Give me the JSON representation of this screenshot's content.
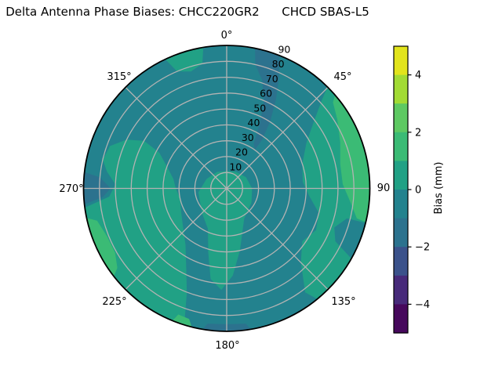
{
  "title": "Delta Antenna Phase Biases: CHCC220GR2      CHCD SBAS-L5",
  "chart_data": {
    "type": "heatmap",
    "projection": "polar",
    "title": "Delta Antenna Phase Biases: CHCC220GR2      CHCD SBAS-L5",
    "theta_tick_labels": [
      "0°",
      "45°",
      "90",
      "135°",
      "180°",
      "225°",
      "270°",
      "315°"
    ],
    "r_tick_labels": [
      "10",
      "20",
      "30",
      "40",
      "50",
      "60",
      "70",
      "80",
      "90"
    ],
    "r_range": [
      0,
      90
    ],
    "grid": true,
    "colorbar": {
      "label": "Bias (mm)",
      "range": [
        -5,
        5
      ],
      "tick_values": [
        4,
        2,
        0,
        -2,
        -4
      ],
      "tick_labels": [
        "4",
        "2",
        "0",
        "−2",
        "−4"
      ],
      "band_colors_top_to_bottom": [
        "#e2e41c",
        "#a2db34",
        "#5ec962",
        "#3bbb75",
        "#21a185",
        "#23828e",
        "#2c728e",
        "#3b528b",
        "#472a7a",
        "#46085c"
      ]
    },
    "regions": [
      {
        "name": "background disc",
        "bias_mm_range": [
          -1,
          0
        ],
        "color": "#23828e"
      },
      {
        "name": "center and south tongue",
        "bias_mm_range": [
          0,
          1
        ],
        "color": "#21a185"
      },
      {
        "name": "west-southwest annulus",
        "bias_mm_range": [
          0,
          1
        ],
        "color": "#21a185"
      },
      {
        "name": "east outer arc",
        "bias_mm_range": [
          0,
          1
        ],
        "color": "#21a185"
      },
      {
        "name": "north-northwest rim patch",
        "bias_mm_range": [
          0,
          1
        ],
        "color": "#21a185"
      },
      {
        "name": "east rim strip",
        "bias_mm_range": [
          1,
          2
        ],
        "color": "#3bbb75"
      },
      {
        "name": "southwest rim strip",
        "bias_mm_range": [
          1,
          2
        ],
        "color": "#3bbb75"
      },
      {
        "name": "south rim sliver (green)",
        "bias_mm_range": [
          1,
          2
        ],
        "color": "#3bbb75"
      },
      {
        "name": "northeast streak",
        "bias_mm_range": [
          -2,
          -1
        ],
        "color": "#2c728e"
      },
      {
        "name": "west rim patch",
        "bias_mm_range": [
          -2,
          -1
        ],
        "color": "#2c728e"
      },
      {
        "name": "south rim sliver (dark)",
        "bias_mm_range": [
          -2,
          -1
        ],
        "color": "#2c728e"
      }
    ]
  }
}
